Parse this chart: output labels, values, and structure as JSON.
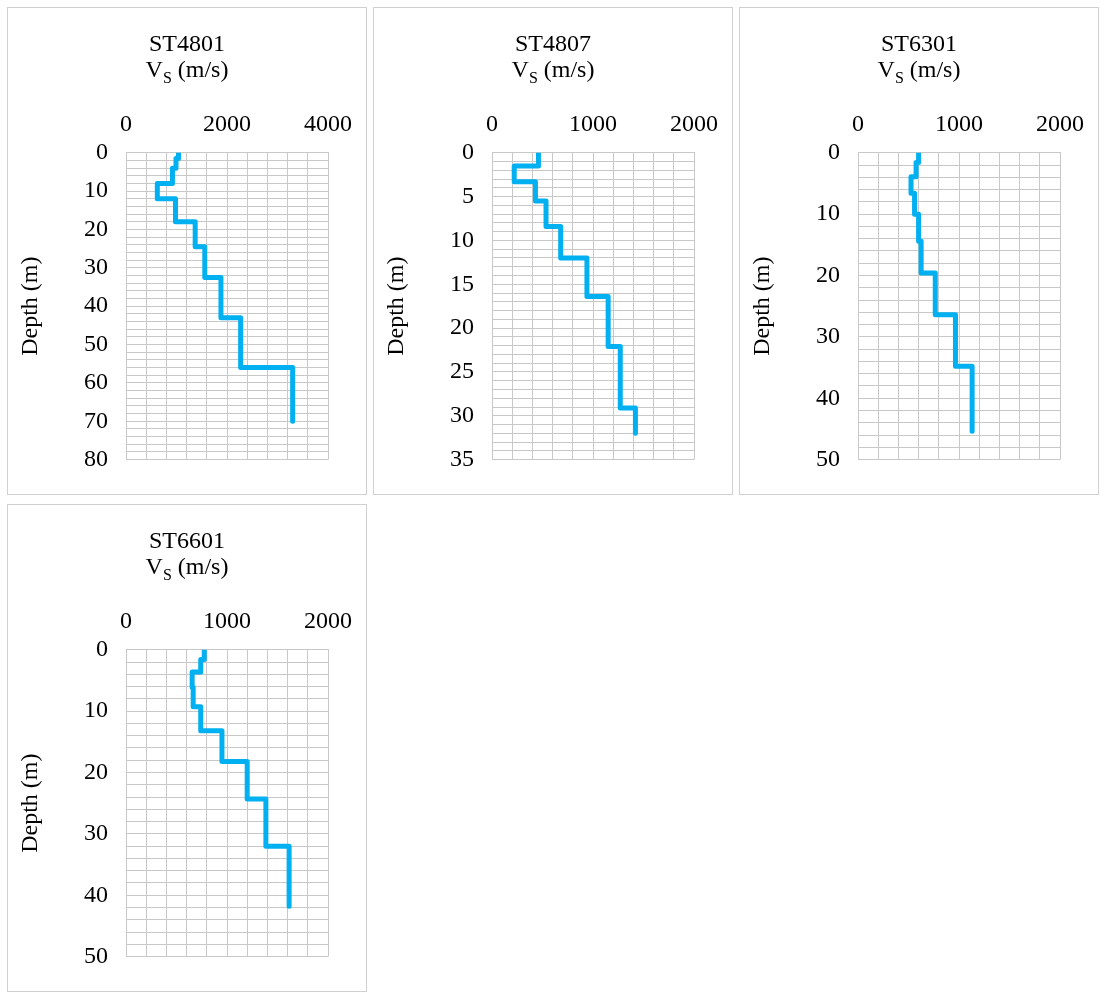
{
  "chart_data": [
    {
      "type": "line",
      "title": "ST4801",
      "xlabel": "V$_{S}$ (m/s)",
      "ylabel": "Depth (m)",
      "grid": true,
      "x": [
        1040,
        1040,
        990,
        990,
        920,
        920,
        620,
        620,
        980,
        980,
        1370,
        1370,
        1560,
        1560,
        1880,
        1880,
        2270,
        2270,
        3300,
        3300
      ],
      "series": [
        {
          "color": "#00b0f0",
          "values": [
            0,
            1.5,
            1.5,
            4,
            4,
            8,
            8,
            12,
            12,
            18,
            18,
            24.5,
            24.5,
            32.5,
            32.5,
            43,
            43,
            56,
            56,
            70
          ]
        }
      ],
      "xlim": [
        0,
        4000
      ],
      "ylim": [
        80,
        0
      ],
      "xticks": [
        0,
        {
          "value": 400,
          "label": null
        },
        {
          "value": 800,
          "label": null
        },
        {
          "value": 1200,
          "label": null
        },
        {
          "value": 1600,
          "label": null
        },
        2000,
        {
          "value": 2400,
          "label": null
        },
        {
          "value": 2800,
          "label": null
        },
        {
          "value": 3200,
          "label": null
        },
        {
          "value": 3600,
          "label": null
        },
        4000
      ],
      "yticks": [
        0,
        {
          "value": 2,
          "label": null
        },
        {
          "value": 4,
          "label": null
        },
        {
          "value": 6,
          "label": null
        },
        {
          "value": 8,
          "label": null
        },
        10,
        {
          "value": 12,
          "label": null
        },
        {
          "value": 14,
          "label": null
        },
        {
          "value": 16,
          "label": null
        },
        {
          "value": 18,
          "label": null
        },
        20,
        {
          "value": 22,
          "label": null
        },
        {
          "value": 24,
          "label": null
        },
        {
          "value": 26,
          "label": null
        },
        {
          "value": 28,
          "label": null
        },
        30,
        {
          "value": 32,
          "label": null
        },
        {
          "value": 34,
          "label": null
        },
        {
          "value": 36,
          "label": null
        },
        {
          "value": 38,
          "label": null
        },
        40,
        {
          "value": 42,
          "label": null
        },
        {
          "value": 44,
          "label": null
        },
        {
          "value": 46,
          "label": null
        },
        {
          "value": 48,
          "label": null
        },
        50,
        {
          "value": 52,
          "label": null
        },
        {
          "value": 54,
          "label": null
        },
        {
          "value": 56,
          "label": null
        },
        {
          "value": 58,
          "label": null
        },
        60,
        {
          "value": 62,
          "label": null
        },
        {
          "value": 64,
          "label": null
        },
        {
          "value": 66,
          "label": null
        },
        {
          "value": 68,
          "label": null
        },
        70,
        {
          "value": 72,
          "label": null
        },
        {
          "value": 74,
          "label": null
        },
        {
          "value": 76,
          "label": null
        },
        {
          "value": 78,
          "label": null
        },
        80
      ]
    },
    {
      "type": "line",
      "title": "ST4807",
      "xlabel": "V$_{S}$ (m/s)",
      "ylabel": "Depth (m)",
      "grid": true,
      "x": [
        460,
        460,
        220,
        220,
        430,
        430,
        535,
        535,
        680,
        680,
        940,
        940,
        1150,
        1150,
        1270,
        1270,
        1420,
        1420
      ],
      "series": [
        {
          "color": "#00b0f0",
          "values": [
            0,
            1.5,
            1.5,
            3.3,
            3.3,
            5.5,
            5.5,
            8.4,
            8.4,
            12,
            12,
            16.4,
            16.4,
            22.1,
            22.1,
            29.1,
            29.1,
            32
          ]
        }
      ],
      "xlim": [
        0,
        2000
      ],
      "ylim": [
        35,
        0
      ],
      "xticks": [
        0,
        {
          "value": 200,
          "label": null
        },
        {
          "value": 400,
          "label": null
        },
        {
          "value": 600,
          "label": null
        },
        {
          "value": 800,
          "label": null
        },
        1000,
        {
          "value": 1200,
          "label": null
        },
        {
          "value": 1400,
          "label": null
        },
        {
          "value": 1600,
          "label": null
        },
        {
          "value": 1800,
          "label": null
        },
        2000
      ],
      "yticks": [
        0,
        {
          "value": 1,
          "label": null
        },
        {
          "value": 2,
          "label": null
        },
        {
          "value": 3,
          "label": null
        },
        {
          "value": 4,
          "label": null
        },
        5,
        {
          "value": 6,
          "label": null
        },
        {
          "value": 7,
          "label": null
        },
        {
          "value": 8,
          "label": null
        },
        {
          "value": 9,
          "label": null
        },
        10,
        {
          "value": 11,
          "label": null
        },
        {
          "value": 12,
          "label": null
        },
        {
          "value": 13,
          "label": null
        },
        {
          "value": 14,
          "label": null
        },
        15,
        {
          "value": 16,
          "label": null
        },
        {
          "value": 17,
          "label": null
        },
        {
          "value": 18,
          "label": null
        },
        {
          "value": 19,
          "label": null
        },
        20,
        {
          "value": 21,
          "label": null
        },
        {
          "value": 22,
          "label": null
        },
        {
          "value": 23,
          "label": null
        },
        {
          "value": 24,
          "label": null
        },
        25,
        {
          "value": 26,
          "label": null
        },
        {
          "value": 27,
          "label": null
        },
        {
          "value": 28,
          "label": null
        },
        {
          "value": 29,
          "label": null
        },
        30,
        {
          "value": 31,
          "label": null
        },
        {
          "value": 32,
          "label": null
        },
        {
          "value": 33,
          "label": null
        },
        {
          "value": 34,
          "label": null
        },
        35
      ]
    },
    {
      "type": "line",
      "title": "ST6301",
      "xlabel": "V$_{S}$ (m/s)",
      "ylabel": "Depth (m)",
      "grid": true,
      "x": [
        600,
        600,
        575,
        575,
        525,
        525,
        560,
        560,
        600,
        600,
        625,
        625,
        765,
        765,
        965,
        965,
        1130,
        1130
      ],
      "series": [
        {
          "color": "#00b0f0",
          "values": [
            0,
            1.6,
            1.6,
            3.9,
            3.9,
            6.6,
            6.6,
            10,
            10,
            14.4,
            14.4,
            19.6,
            19.6,
            26.4,
            26.4,
            34.8,
            34.8,
            45.4
          ]
        }
      ],
      "xlim": [
        0,
        2000
      ],
      "ylim": [
        50,
        0
      ],
      "xticks": [
        0,
        {
          "value": 200,
          "label": null
        },
        {
          "value": 400,
          "label": null
        },
        {
          "value": 600,
          "label": null
        },
        {
          "value": 800,
          "label": null
        },
        1000,
        {
          "value": 1200,
          "label": null
        },
        {
          "value": 1400,
          "label": null
        },
        {
          "value": 1600,
          "label": null
        },
        {
          "value": 1800,
          "label": null
        },
        2000
      ],
      "yticks": [
        0,
        {
          "value": 2,
          "label": null
        },
        {
          "value": 4,
          "label": null
        },
        {
          "value": 6,
          "label": null
        },
        {
          "value": 8,
          "label": null
        },
        10,
        {
          "value": 12,
          "label": null
        },
        {
          "value": 14,
          "label": null
        },
        {
          "value": 16,
          "label": null
        },
        {
          "value": 18,
          "label": null
        },
        20,
        {
          "value": 22,
          "label": null
        },
        {
          "value": 24,
          "label": null
        },
        {
          "value": 26,
          "label": null
        },
        {
          "value": 28,
          "label": null
        },
        30,
        {
          "value": 32,
          "label": null
        },
        {
          "value": 34,
          "label": null
        },
        {
          "value": 36,
          "label": null
        },
        {
          "value": 38,
          "label": null
        },
        40,
        {
          "value": 42,
          "label": null
        },
        {
          "value": 44,
          "label": null
        },
        {
          "value": 46,
          "label": null
        },
        {
          "value": 48,
          "label": null
        },
        50
      ]
    },
    {
      "type": "line",
      "title": "ST6601",
      "xlabel": "V$_{S}$ (m/s)",
      "ylabel": "Depth (m)",
      "grid": true,
      "x": [
        775,
        775,
        740,
        740,
        655,
        655,
        665,
        665,
        740,
        740,
        950,
        950,
        1200,
        1200,
        1385,
        1385,
        1615,
        1615
      ],
      "series": [
        {
          "color": "#00b0f0",
          "values": [
            0,
            1.6,
            1.6,
            3.6,
            3.6,
            6.1,
            6.1,
            9.3,
            9.3,
            13.2,
            13.2,
            18.2,
            18.2,
            24.3,
            24.3,
            32,
            32,
            41.8
          ]
        }
      ],
      "xlim": [
        0,
        2000
      ],
      "ylim": [
        50,
        0
      ],
      "xticks": [
        0,
        {
          "value": 200,
          "label": null
        },
        {
          "value": 400,
          "label": null
        },
        {
          "value": 600,
          "label": null
        },
        {
          "value": 800,
          "label": null
        },
        1000,
        {
          "value": 1200,
          "label": null
        },
        {
          "value": 1400,
          "label": null
        },
        {
          "value": 1600,
          "label": null
        },
        {
          "value": 1800,
          "label": null
        },
        2000
      ],
      "yticks": [
        0,
        {
          "value": 2,
          "label": null
        },
        {
          "value": 4,
          "label": null
        },
        {
          "value": 6,
          "label": null
        },
        {
          "value": 8,
          "label": null
        },
        10,
        {
          "value": 12,
          "label": null
        },
        {
          "value": 14,
          "label": null
        },
        {
          "value": 16,
          "label": null
        },
        {
          "value": 18,
          "label": null
        },
        20,
        {
          "value": 22,
          "label": null
        },
        {
          "value": 24,
          "label": null
        },
        {
          "value": 26,
          "label": null
        },
        {
          "value": 28,
          "label": null
        },
        30,
        {
          "value": 32,
          "label": null
        },
        {
          "value": 34,
          "label": null
        },
        {
          "value": 36,
          "label": null
        },
        {
          "value": 38,
          "label": null
        },
        40,
        {
          "value": 42,
          "label": null
        },
        {
          "value": 44,
          "label": null
        },
        {
          "value": 46,
          "label": null
        },
        {
          "value": 48,
          "label": null
        },
        50
      ]
    }
  ]
}
